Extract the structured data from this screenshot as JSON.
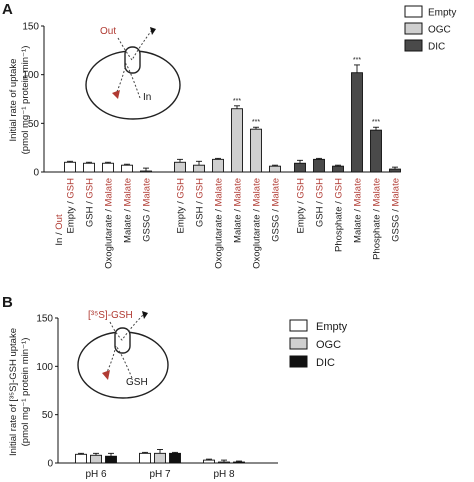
{
  "chart_data": [
    {
      "panel": "A",
      "type": "bar",
      "ylabel_line1": "Initial rate of uptake",
      "ylabel_line2": "(pmol mg⁻¹ protein min⁻¹)",
      "ylim": [
        0,
        150
      ],
      "yticks": [
        "0",
        "50",
        "100",
        "150"
      ],
      "grid": false,
      "legend_position": "top-right",
      "legend": [
        "Empty",
        "OGC",
        "DIC"
      ],
      "colors": {
        "Empty": "#ffffff",
        "OGC": "#cfcfcf",
        "DIC": "#4a4a4a"
      },
      "axis_title": {
        "in": "In",
        "slash": " / ",
        "out": "Out"
      },
      "inset": {
        "out_label": "Out",
        "in_label": "In"
      },
      "significance_label": "***",
      "groups": [
        {
          "series": "Empty",
          "bars": [
            {
              "in": "Empty",
              "out": "GSH",
              "value": 10,
              "err": 1
            },
            {
              "in": "GSH",
              "out": "GSH",
              "value": 9,
              "err": 1
            },
            {
              "in": "Oxoglutarate",
              "out": "Malate",
              "value": 9,
              "err": 1
            },
            {
              "in": "Malate",
              "out": "Malate",
              "value": 7,
              "err": 1
            },
            {
              "in": "GSSG",
              "out": "Malate",
              "value": 1,
              "err": 3
            }
          ]
        },
        {
          "series": "OGC",
          "bars": [
            {
              "in": "Empty",
              "out": "GSH",
              "value": 10,
              "err": 3
            },
            {
              "in": "GSH",
              "out": "GSH",
              "value": 7,
              "err": 4
            },
            {
              "in": "Oxoglutarate",
              "out": "Malate",
              "value": 13,
              "err": 1
            },
            {
              "in": "Malate",
              "out": "Malate",
              "value": 65,
              "err": 3,
              "sig": true
            },
            {
              "in": "Oxoglutarate",
              "out": "Malate",
              "value": 44,
              "err": 2,
              "sig": true
            },
            {
              "in": "GSSG",
              "out": "Malate",
              "value": 6,
              "err": 1
            }
          ]
        },
        {
          "series": "DIC",
          "bars": [
            {
              "in": "Empty",
              "out": "GSH",
              "value": 9,
              "err": 3
            },
            {
              "in": "GSH",
              "out": "GSH",
              "value": 13,
              "err": 1
            },
            {
              "in": "Phosphate",
              "out": "GSH",
              "value": 6,
              "err": 1
            },
            {
              "in": "Malate",
              "out": "Malate",
              "value": 102,
              "err": 8,
              "sig": true
            },
            {
              "in": "Phosphate",
              "out": "Malate",
              "value": 43,
              "err": 3,
              "sig": true
            },
            {
              "in": "GSSG",
              "out": "Malate",
              "value": 3,
              "err": 2
            }
          ]
        }
      ]
    },
    {
      "panel": "B",
      "type": "bar",
      "ylabel_line1": "Initial rate of [³⁵S]-GSH uptake",
      "ylabel_line2": "(pmol mg⁻¹ protein min⁻¹)",
      "ylim": [
        0,
        150
      ],
      "yticks": [
        "0",
        "50",
        "100",
        "150"
      ],
      "grid": false,
      "legend_position": "top-right",
      "categories": [
        "pH 6",
        "pH 7",
        "pH 8"
      ],
      "inset": {
        "out_label": "[³⁵S]-GSH",
        "in_label": "GSH"
      },
      "series": [
        {
          "name": "Empty",
          "color": "#ffffff",
          "values": [
            9,
            10,
            3
          ],
          "err": [
            1,
            1,
            1
          ]
        },
        {
          "name": "OGC",
          "color": "#cfcfcf",
          "values": [
            8,
            10,
            1
          ],
          "err": [
            2,
            4,
            2
          ]
        },
        {
          "name": "DIC",
          "color": "#111111",
          "values": [
            7,
            10,
            1
          ],
          "err": [
            3,
            1,
            1
          ]
        }
      ]
    }
  ]
}
